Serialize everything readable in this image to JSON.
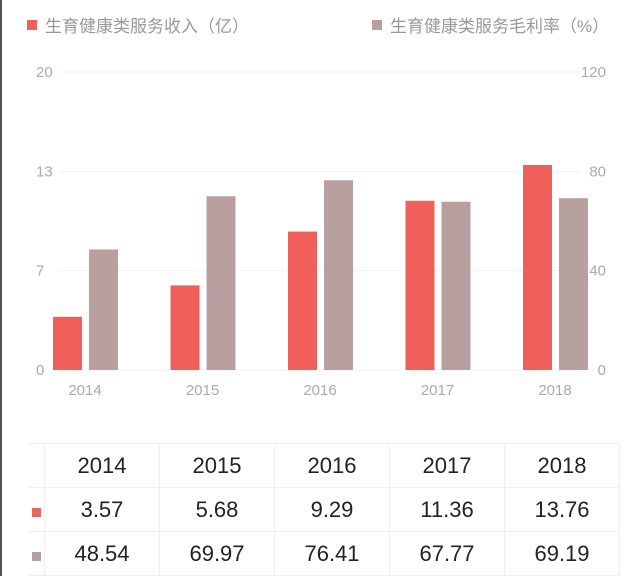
{
  "legend": [
    {
      "label": "生育健康类服务收入（亿）",
      "color": "#f0605a"
    },
    {
      "label": "生育健康类服务毛利率（%）",
      "color": "#b8a0a0"
    }
  ],
  "chart_data": {
    "type": "bar",
    "categories": [
      "2014",
      "2015",
      "2016",
      "2017",
      "2018"
    ],
    "series": [
      {
        "name": "生育健康类服务收入（亿）",
        "axis": "left",
        "color": "#f0605a",
        "values": [
          3.57,
          5.68,
          9.29,
          11.36,
          13.76
        ]
      },
      {
        "name": "生育健康类服务毛利率（%）",
        "axis": "right",
        "color": "#b8a0a0",
        "values": [
          48.54,
          69.97,
          76.41,
          67.77,
          69.19
        ]
      }
    ],
    "left_axis": {
      "range": [
        0,
        20
      ],
      "ticks": [
        "0",
        "7",
        "13",
        "20"
      ]
    },
    "right_axis": {
      "range": [
        0,
        120
      ],
      "ticks": [
        "0",
        "40",
        "80",
        "120"
      ]
    },
    "grid": true,
    "legend_position": "top"
  },
  "table": {
    "header": [
      "2014",
      "2015",
      "2016",
      "2017",
      "2018"
    ],
    "rows": [
      [
        "3.57",
        "5.68",
        "9.29",
        "11.36",
        "13.76"
      ],
      [
        "48.54",
        "69.97",
        "76.41",
        "67.77",
        "69.19"
      ]
    ]
  }
}
